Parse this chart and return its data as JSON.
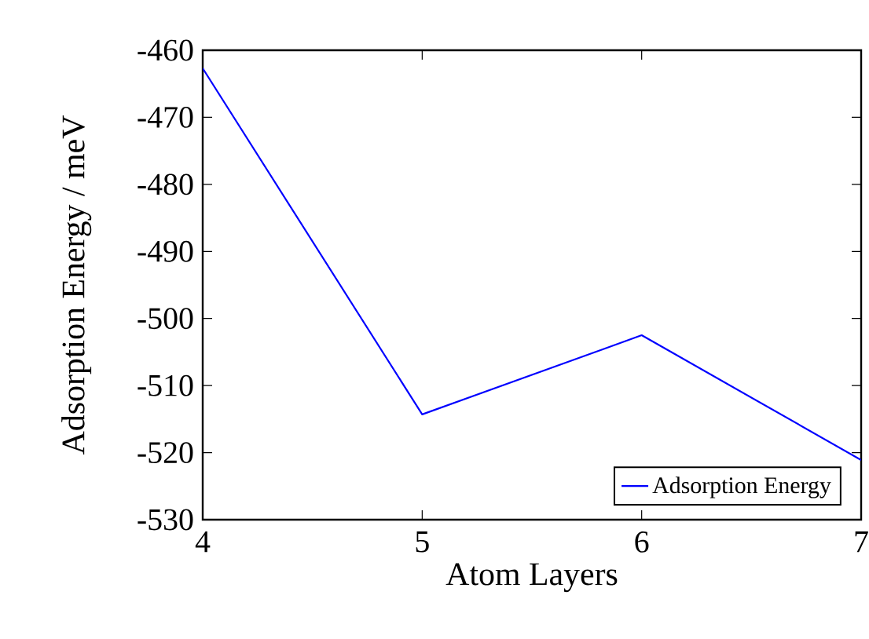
{
  "chart_data": {
    "type": "line",
    "xlabel": "Atom Layers",
    "ylabel": "Adsorption Energy / meV",
    "x": [
      4,
      5,
      6,
      7
    ],
    "series": [
      {
        "name": "Adsorption Energy",
        "color": "#0000ff",
        "values": [
          -462.7,
          -514.3,
          -502.5,
          -521.1
        ]
      }
    ],
    "xlim": [
      4,
      7
    ],
    "xticks": [
      4,
      5,
      6,
      7
    ],
    "ylim": [
      -530,
      -460
    ],
    "yticks": [
      -530,
      -520,
      -510,
      -500,
      -490,
      -480,
      -470,
      -460
    ],
    "grid": false,
    "legend": "bottom right",
    "marker": "none",
    "line_style": "solid"
  }
}
